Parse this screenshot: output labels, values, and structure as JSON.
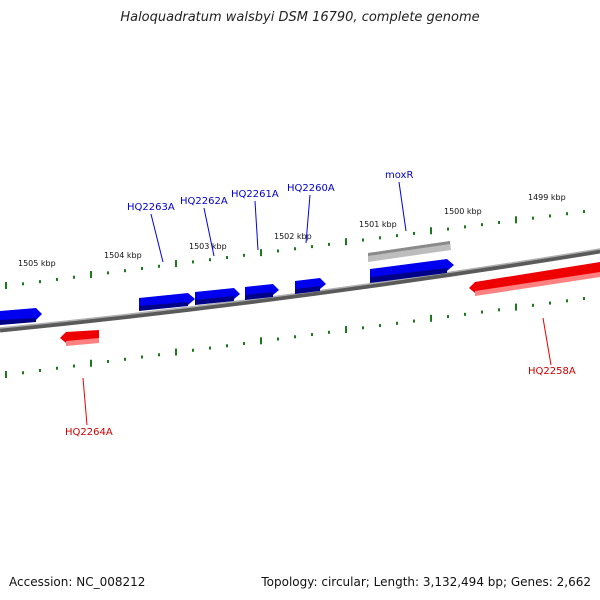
{
  "title": "Haloquadratum walsbyi DSM 16790, complete genome",
  "footer": {
    "accession": "Accession: NC_008212",
    "summary": "Topology: circular; Length: 3,132,494 bp; Genes: 2,662"
  },
  "colors": {
    "forward_gene": "#0000ff",
    "reverse_gene": "#ff0000",
    "highlight_gene": "#a0a0a0",
    "backbone": "#808080",
    "ticks": "#1a7a1a"
  },
  "scale_labels": [
    {
      "kbp": 1505,
      "label": "1505 kbp"
    },
    {
      "kbp": 1504,
      "label": "1504 kbp"
    },
    {
      "kbp": 1503,
      "label": "1503 kbp"
    },
    {
      "kbp": 1502,
      "label": "1502 kbp"
    },
    {
      "kbp": 1501,
      "label": "1501 kbp"
    },
    {
      "kbp": 1500,
      "label": "1500 kbp"
    },
    {
      "kbp": 1499,
      "label": "1499 kbp"
    }
  ],
  "genes": [
    {
      "label": "HQ2263A",
      "strand": "forward"
    },
    {
      "label": "HQ2262A",
      "strand": "forward"
    },
    {
      "label": "HQ2261A",
      "strand": "forward"
    },
    {
      "label": "HQ2260A",
      "strand": "forward"
    },
    {
      "label": "moxR",
      "strand": "forward"
    },
    {
      "label": "HQ2258A",
      "strand": "reverse"
    },
    {
      "label": "HQ2264A",
      "strand": "reverse"
    }
  ]
}
